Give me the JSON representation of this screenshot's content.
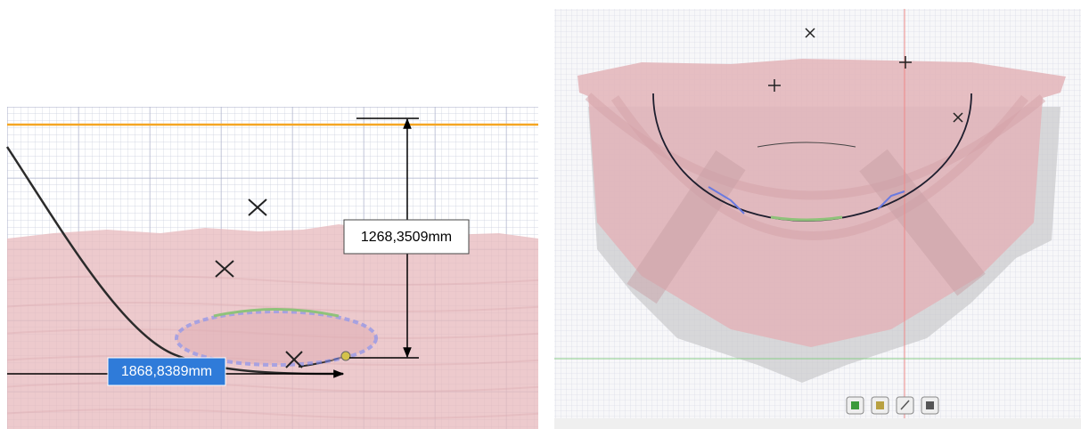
{
  "vertical_dimension": "1268,3509mm",
  "horizontal_dimension": "1868,8389mm"
}
